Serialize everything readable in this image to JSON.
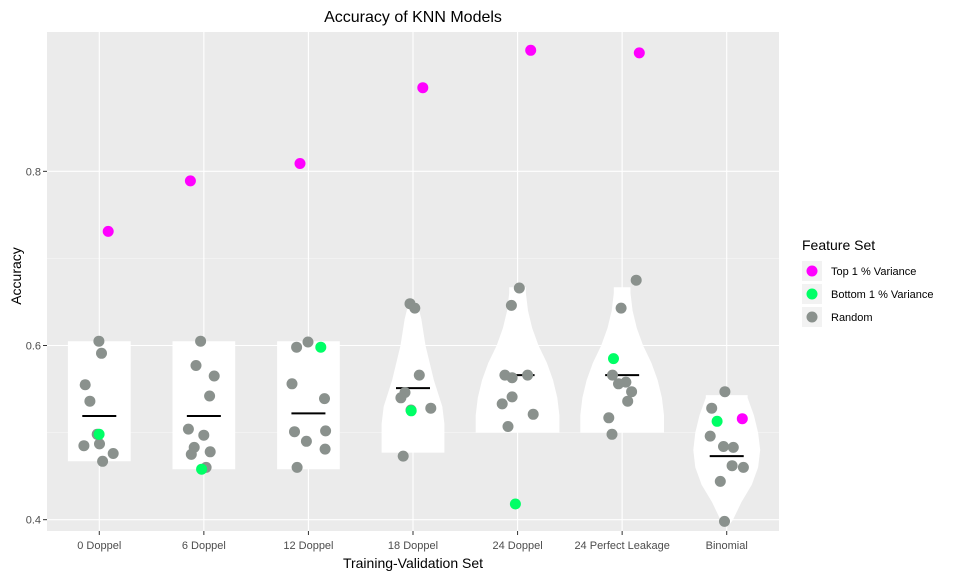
{
  "chart_data": {
    "type": "scatter",
    "subtype": "violin-jitter",
    "title": "Accuracy of KNN Models",
    "xlabel": "Training-Validation Set",
    "ylabel": "Accuracy",
    "ylim": [
      0.387,
      0.96
    ],
    "yticks": [
      0.4,
      0.6,
      0.8
    ],
    "ytick_labels": [
      "0.4",
      "0.6",
      "0.8"
    ],
    "categories": [
      "0 Doppel",
      "6 Doppel",
      "12 Doppel",
      "18 Doppel",
      "24 Doppel",
      "24 Perfect Leakage",
      "Binomial"
    ],
    "grid": true,
    "legend": {
      "title": "Feature Set",
      "placement": "right",
      "entries": [
        {
          "name": "Top 1 % Variance",
          "color": "#ff00ff"
        },
        {
          "name": "Bottom 1 % Variance",
          "color": "#00ff66"
        },
        {
          "name": "Random",
          "color": "#8a918d"
        }
      ]
    },
    "series": [
      {
        "name": "Top 1 % Variance",
        "color": "#ff00ff",
        "points": [
          {
            "x": "0 Doppel",
            "y": 0.731
          },
          {
            "x": "6 Doppel",
            "y": 0.789
          },
          {
            "x": "12 Doppel",
            "y": 0.809
          },
          {
            "x": "18 Doppel",
            "y": 0.896
          },
          {
            "x": "24 Doppel",
            "y": 0.939
          },
          {
            "x": "24 Perfect Leakage",
            "y": 0.936
          },
          {
            "x": "Binomial",
            "y": 0.516
          }
        ]
      },
      {
        "name": "Bottom 1 % Variance",
        "color": "#00ff66",
        "points": [
          {
            "x": "0 Doppel",
            "y": 0.498
          },
          {
            "x": "6 Doppel",
            "y": 0.458
          },
          {
            "x": "12 Doppel",
            "y": 0.598
          },
          {
            "x": "18 Doppel",
            "y": 0.525
          },
          {
            "x": "24 Doppel",
            "y": 0.418
          },
          {
            "x": "24 Perfect Leakage",
            "y": 0.585
          },
          {
            "x": "Binomial",
            "y": 0.513
          }
        ]
      },
      {
        "name": "Random",
        "color": "#8a918d",
        "points": [
          {
            "x": "0 Doppel",
            "y": 0.605
          },
          {
            "x": "0 Doppel",
            "y": 0.591
          },
          {
            "x": "0 Doppel",
            "y": 0.555
          },
          {
            "x": "0 Doppel",
            "y": 0.536
          },
          {
            "x": "0 Doppel",
            "y": 0.498
          },
          {
            "x": "0 Doppel",
            "y": 0.487
          },
          {
            "x": "0 Doppel",
            "y": 0.485
          },
          {
            "x": "0 Doppel",
            "y": 0.476
          },
          {
            "x": "0 Doppel",
            "y": 0.467
          },
          {
            "x": "6 Doppel",
            "y": 0.605
          },
          {
            "x": "6 Doppel",
            "y": 0.577
          },
          {
            "x": "6 Doppel",
            "y": 0.565
          },
          {
            "x": "6 Doppel",
            "y": 0.542
          },
          {
            "x": "6 Doppel",
            "y": 0.504
          },
          {
            "x": "6 Doppel",
            "y": 0.497
          },
          {
            "x": "6 Doppel",
            "y": 0.483
          },
          {
            "x": "6 Doppel",
            "y": 0.478
          },
          {
            "x": "6 Doppel",
            "y": 0.475
          },
          {
            "x": "6 Doppel",
            "y": 0.46
          },
          {
            "x": "12 Doppel",
            "y": 0.604
          },
          {
            "x": "12 Doppel",
            "y": 0.598
          },
          {
            "x": "12 Doppel",
            "y": 0.556
          },
          {
            "x": "12 Doppel",
            "y": 0.539
          },
          {
            "x": "12 Doppel",
            "y": 0.502
          },
          {
            "x": "12 Doppel",
            "y": 0.501
          },
          {
            "x": "12 Doppel",
            "y": 0.49
          },
          {
            "x": "12 Doppel",
            "y": 0.481
          },
          {
            "x": "12 Doppel",
            "y": 0.46
          },
          {
            "x": "18 Doppel",
            "y": 0.648
          },
          {
            "x": "18 Doppel",
            "y": 0.643
          },
          {
            "x": "18 Doppel",
            "y": 0.566
          },
          {
            "x": "18 Doppel",
            "y": 0.546
          },
          {
            "x": "18 Doppel",
            "y": 0.54
          },
          {
            "x": "18 Doppel",
            "y": 0.528
          },
          {
            "x": "18 Doppel",
            "y": 0.526
          },
          {
            "x": "18 Doppel",
            "y": 0.473
          },
          {
            "x": "24 Doppel",
            "y": 0.666
          },
          {
            "x": "24 Doppel",
            "y": 0.646
          },
          {
            "x": "24 Doppel",
            "y": 0.566
          },
          {
            "x": "24 Doppel",
            "y": 0.566
          },
          {
            "x": "24 Doppel",
            "y": 0.563
          },
          {
            "x": "24 Doppel",
            "y": 0.541
          },
          {
            "x": "24 Doppel",
            "y": 0.533
          },
          {
            "x": "24 Doppel",
            "y": 0.521
          },
          {
            "x": "24 Doppel",
            "y": 0.507
          },
          {
            "x": "24 Perfect Leakage",
            "y": 0.675
          },
          {
            "x": "24 Perfect Leakage",
            "y": 0.643
          },
          {
            "x": "24 Perfect Leakage",
            "y": 0.566
          },
          {
            "x": "24 Perfect Leakage",
            "y": 0.558
          },
          {
            "x": "24 Perfect Leakage",
            "y": 0.556
          },
          {
            "x": "24 Perfect Leakage",
            "y": 0.547
          },
          {
            "x": "24 Perfect Leakage",
            "y": 0.536
          },
          {
            "x": "24 Perfect Leakage",
            "y": 0.517
          },
          {
            "x": "24 Perfect Leakage",
            "y": 0.498
          },
          {
            "x": "Binomial",
            "y": 0.547
          },
          {
            "x": "Binomial",
            "y": 0.528
          },
          {
            "x": "Binomial",
            "y": 0.496
          },
          {
            "x": "Binomial",
            "y": 0.484
          },
          {
            "x": "Binomial",
            "y": 0.483
          },
          {
            "x": "Binomial",
            "y": 0.462
          },
          {
            "x": "Binomial",
            "y": 0.46
          },
          {
            "x": "Binomial",
            "y": 0.444
          },
          {
            "x": "Binomial",
            "y": 0.398
          }
        ]
      }
    ],
    "medians": [
      0.519,
      0.519,
      0.522,
      0.551,
      0.566,
      0.566,
      0.473
    ],
    "violins": [
      {
        "x": "0 Doppel",
        "profile": [
          [
            0.467,
            0.3
          ],
          [
            0.47,
            0.3
          ],
          [
            0.55,
            0.3
          ],
          [
            0.605,
            0.3
          ]
        ]
      },
      {
        "x": "6 Doppel",
        "profile": [
          [
            0.458,
            0.3
          ],
          [
            0.46,
            0.3
          ],
          [
            0.56,
            0.3
          ],
          [
            0.605,
            0.3
          ]
        ]
      },
      {
        "x": "12 Doppel",
        "profile": [
          [
            0.458,
            0.3
          ],
          [
            0.46,
            0.3
          ],
          [
            0.56,
            0.3
          ],
          [
            0.605,
            0.3
          ]
        ]
      },
      {
        "x": "18 Doppel",
        "profile": [
          [
            0.477,
            0.3
          ],
          [
            0.48,
            0.3
          ],
          [
            0.51,
            0.3
          ],
          [
            0.53,
            0.28
          ],
          [
            0.56,
            0.2
          ],
          [
            0.6,
            0.12
          ],
          [
            0.63,
            0.08
          ],
          [
            0.645,
            0.05
          ],
          [
            0.65,
            0.03
          ]
        ]
      },
      {
        "x": "24 Doppel",
        "profile": [
          [
            0.5,
            0.4
          ],
          [
            0.52,
            0.4
          ],
          [
            0.54,
            0.38
          ],
          [
            0.56,
            0.34
          ],
          [
            0.58,
            0.28
          ],
          [
            0.6,
            0.2
          ],
          [
            0.62,
            0.14
          ],
          [
            0.64,
            0.1
          ],
          [
            0.66,
            0.08
          ],
          [
            0.667,
            0.08
          ]
        ]
      },
      {
        "x": "24 Perfect Leakage",
        "profile": [
          [
            0.5,
            0.4
          ],
          [
            0.52,
            0.4
          ],
          [
            0.54,
            0.38
          ],
          [
            0.56,
            0.34
          ],
          [
            0.58,
            0.28
          ],
          [
            0.6,
            0.2
          ],
          [
            0.62,
            0.14
          ],
          [
            0.64,
            0.1
          ],
          [
            0.66,
            0.08
          ],
          [
            0.667,
            0.08
          ]
        ]
      },
      {
        "x": "Binomial",
        "profile": [
          [
            0.395,
            0.03
          ],
          [
            0.4,
            0.06
          ],
          [
            0.42,
            0.14
          ],
          [
            0.44,
            0.24
          ],
          [
            0.46,
            0.3
          ],
          [
            0.48,
            0.32
          ],
          [
            0.5,
            0.3
          ],
          [
            0.52,
            0.26
          ],
          [
            0.54,
            0.2
          ],
          [
            0.543,
            0.2
          ]
        ]
      }
    ]
  }
}
